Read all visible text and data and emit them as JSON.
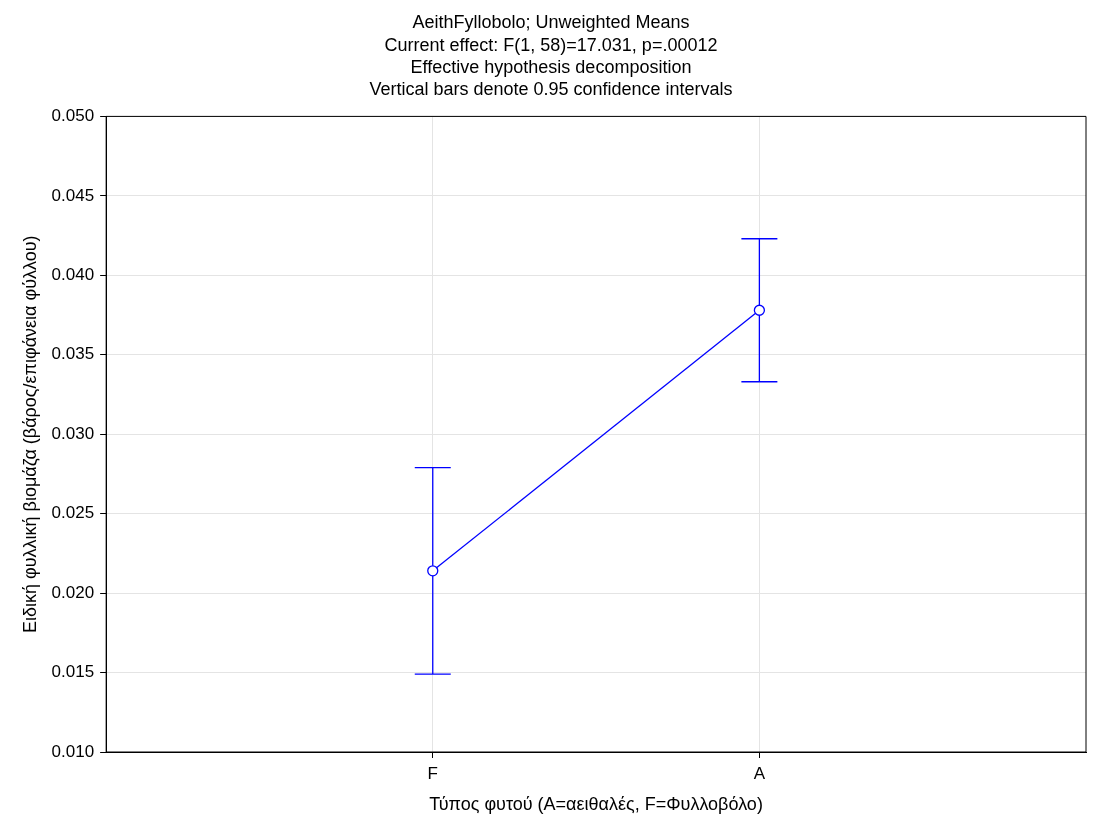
{
  "chart_data": {
    "type": "line",
    "title": "AeithFyllobolo; Unweighted Means",
    "subtitle": "Current effect: F(1, 58)=17.031, p=.00012",
    "annotations": [
      "Effective hypothesis decomposition",
      "Vertical bars denote 0.95 confidence intervals"
    ],
    "xlabel": "Τύπος φυτού (A=αειθαλές, F=Φυλλοβόλο)",
    "ylabel": "Ειδική φυλλική βιομάζα (βάρος/επιφάνεια φύλλου)",
    "categories": [
      "F",
      "A"
    ],
    "series": [
      {
        "color": "#0000ff",
        "values": [
          0.0214,
          0.0378
        ],
        "errors": [
          [
            0.0149,
            0.0279
          ],
          [
            0.0333,
            0.0423
          ]
        ]
      }
    ],
    "ylim": [
      0.01,
      0.05
    ],
    "yticks": [
      {
        "value": 0.01,
        "label": "0.010"
      },
      0.015,
      {
        "value": 0.02,
        "label": "0.020"
      },
      0.025,
      {
        "value": 0.03,
        "label": "0.030"
      },
      0.035,
      {
        "value": 0.04,
        "label": "0.040"
      },
      0.045,
      {
        "value": 0.05,
        "label": "0.050"
      }
    ],
    "grid": true,
    "legend": false,
    "marker": "circle",
    "line_style": "solid"
  }
}
